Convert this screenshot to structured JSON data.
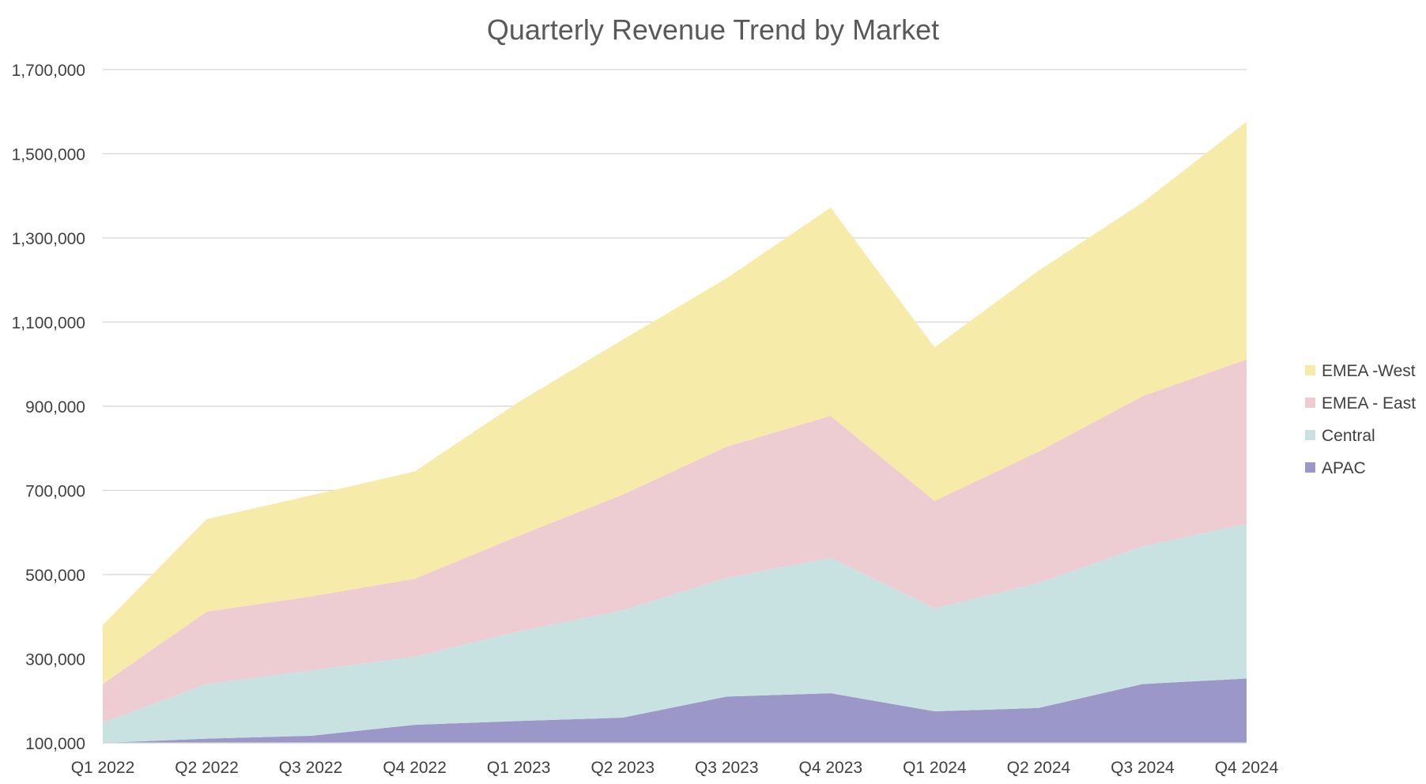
{
  "chart_data": {
    "type": "area",
    "stacked": true,
    "title": "Quarterly Revenue Trend by Market",
    "xlabel": "",
    "ylabel": "",
    "categories": [
      "Q1 2022",
      "Q2 2022",
      "Q3 2022",
      "Q4 2022",
      "Q1 2023",
      "Q2 2023",
      "Q3 2023",
      "Q4 2023",
      "Q1 2024",
      "Q2 2024",
      "Q3 2024",
      "Q4 2024"
    ],
    "ylim": [
      100000,
      1700000
    ],
    "yticks": [
      100000,
      300000,
      500000,
      700000,
      900000,
      1100000,
      1300000,
      1500000,
      1700000
    ],
    "ytick_labels": [
      "100,000",
      "300,000",
      "500,000",
      "700,000",
      "900,000",
      "1,100,000",
      "1,300,000",
      "1,500,000",
      "1,700,000"
    ],
    "grid": true,
    "legend_position": "right",
    "legend_order": [
      "EMEA -West",
      "EMEA - East",
      "Central",
      "APAC"
    ],
    "series": [
      {
        "name": "APAC",
        "color": "#9b98c9",
        "values": [
          90000,
          110000,
          117000,
          143000,
          152000,
          160000,
          210000,
          218000,
          175000,
          183000,
          240000,
          253000
        ]
      },
      {
        "name": "Central",
        "color": "#c8e2e1",
        "values": [
          58000,
          130000,
          155000,
          162000,
          213000,
          255000,
          282000,
          322000,
          245000,
          297000,
          327000,
          368000
        ]
      },
      {
        "name": "EMEA - East",
        "color": "#edcdd2",
        "values": [
          92000,
          172000,
          176000,
          185000,
          227000,
          275000,
          312000,
          337000,
          255000,
          312000,
          357000,
          390000
        ]
      },
      {
        "name": "EMEA -West",
        "color": "#f7eba9",
        "values": [
          140000,
          220000,
          240000,
          255000,
          318000,
          368000,
          400000,
          495000,
          365000,
          430000,
          460000,
          565000
        ]
      }
    ]
  }
}
